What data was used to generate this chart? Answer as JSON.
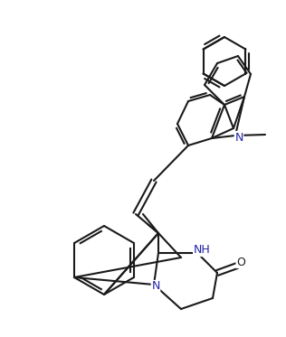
{
  "figsize": [
    3.16,
    3.73
  ],
  "dpi": 100,
  "background": "#ffffff",
  "lw": 1.5,
  "lc": "#1a1a1a",
  "atom_N_color": "#2222aa",
  "atom_O_color": "#333333",
  "xlim": [
    0,
    316
  ],
  "ylim": [
    0,
    373
  ]
}
